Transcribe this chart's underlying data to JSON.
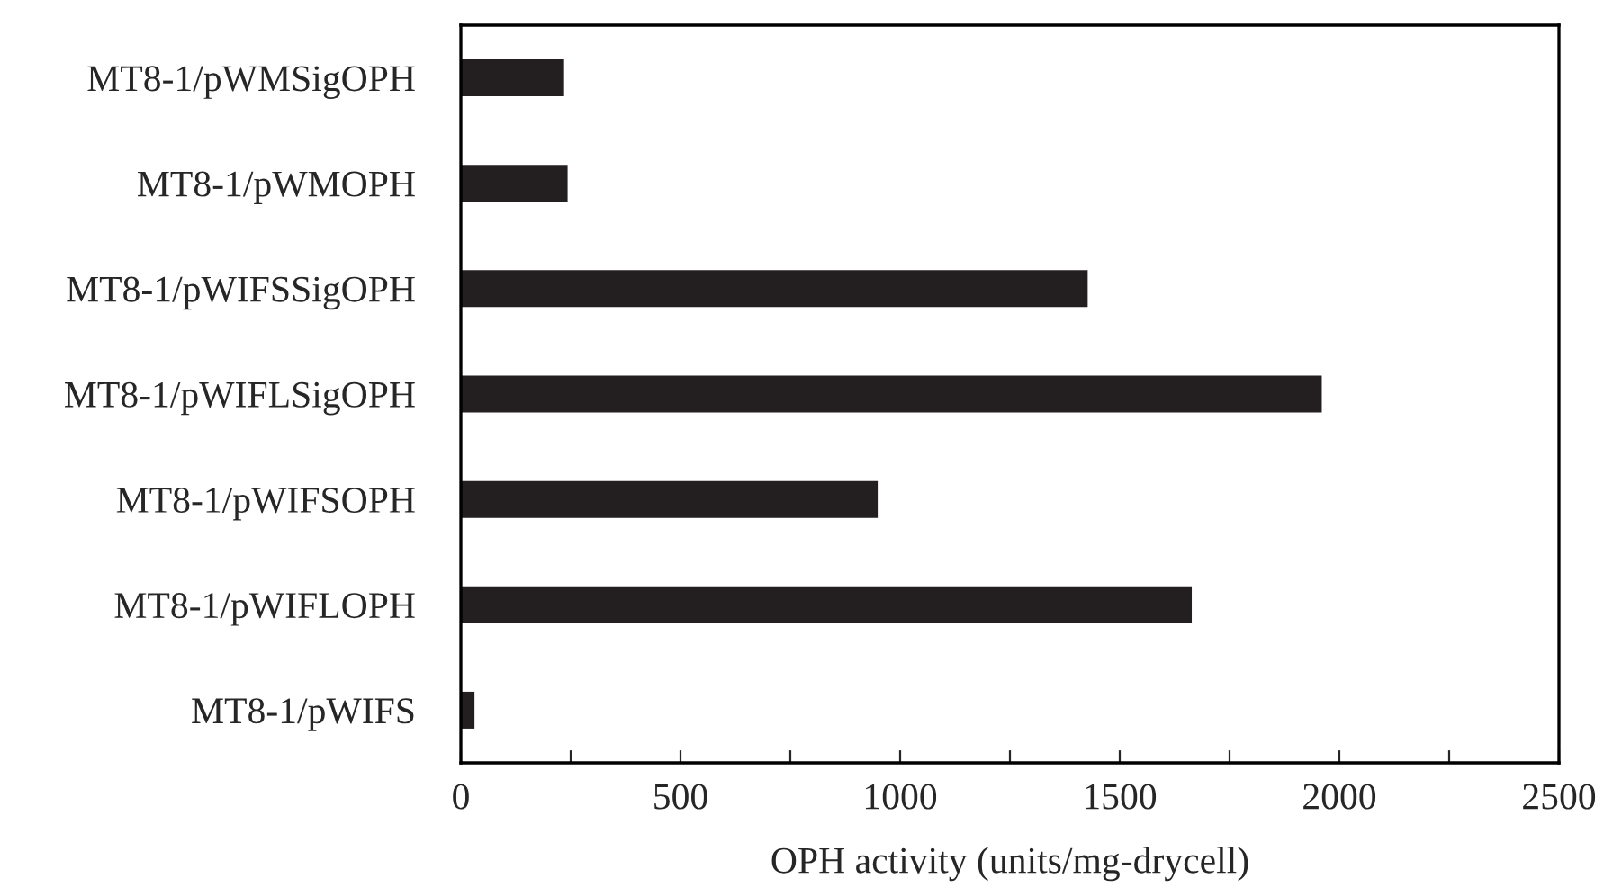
{
  "chart_data": {
    "type": "bar",
    "orientation": "horizontal",
    "xlabel": "OPH activity (units/mg-drycell)",
    "categories": [
      "MT8-1/pWMSigOPH",
      "MT8-1/pWMOPH",
      "MT8-1/pWIFSSigOPH",
      "MT8-1/pWIFLSigOPH",
      "MT8-1/pWIFSOPH",
      "MT8-1/pWIFLOPH",
      "MT8-1/pWIFS"
    ],
    "values": [
      235,
      243,
      1427,
      1960,
      949,
      1664,
      31
    ],
    "color": "#231f20",
    "xlim": [
      0,
      2500
    ],
    "xticks": [
      0,
      {
        "value": 250,
        "label": null
      },
      500,
      {
        "value": 750,
        "label": null
      },
      1000,
      {
        "value": 1250,
        "label": null
      },
      1500,
      {
        "value": 1750,
        "label": null
      },
      2000,
      {
        "value": 2250,
        "label": null
      },
      2500
    ],
    "grid": false,
    "legend": false
  }
}
